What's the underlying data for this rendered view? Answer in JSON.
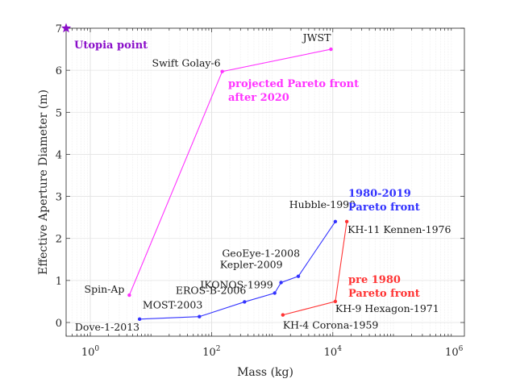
{
  "chart_data": {
    "type": "line",
    "title": "",
    "xlabel": "Mass (kg)",
    "ylabel": "Effective Aperture Diameter (m)",
    "xscale": "log",
    "xlim": [
      0.4,
      1000000
    ],
    "ylim": [
      -0.4,
      7
    ],
    "grid": true,
    "x_ticks": [
      {
        "value": 1,
        "base": "10",
        "exp": "0"
      },
      {
        "value": 100,
        "base": "10",
        "exp": "2"
      },
      {
        "value": 10000,
        "base": "10",
        "exp": "4"
      },
      {
        "value": 1000000,
        "base": "10",
        "exp": "6"
      }
    ],
    "y_ticks": [
      0,
      1,
      2,
      3,
      4,
      5,
      6,
      7
    ],
    "series": [
      {
        "name": "projected Pareto front after 2020",
        "color": "#ff33ff",
        "annotation": [
          "projected Pareto front",
          "after 2020"
        ],
        "points": [
          {
            "label": "Spin-Ap",
            "x": 4.4,
            "y": 0.65
          },
          {
            "label": "Swift Golay-6",
            "x": 150,
            "y": 5.97
          },
          {
            "label": "JWST",
            "x": 9300,
            "y": 6.5
          }
        ]
      },
      {
        "name": "1980-2019 Pareto front",
        "color": "#3333ff",
        "annotation": [
          "1980-2019",
          "Pareto front"
        ],
        "points": [
          {
            "label": "Dove-1-2013",
            "x": 6.5,
            "y": 0.08
          },
          {
            "label": "MOST-2003",
            "x": 63,
            "y": 0.14
          },
          {
            "label": "EROS-B-2006",
            "x": 350,
            "y": 0.49
          },
          {
            "label": "IKONOS-1999",
            "x": 1100,
            "y": 0.7
          },
          {
            "label": "Kepler-2009",
            "x": 1400,
            "y": 0.95
          },
          {
            "label": "GeoEye-1-2008",
            "x": 2700,
            "y": 1.1
          },
          {
            "label": "Hubble-1990",
            "x": 11000,
            "y": 2.4
          }
        ]
      },
      {
        "name": "pre 1980 Pareto front",
        "color": "#ff3333",
        "annotation": [
          "pre 1980",
          "Pareto front"
        ],
        "points": [
          {
            "label": "KH-4 Corona-1959",
            "x": 1500,
            "y": 0.18
          },
          {
            "label": "KH-9 Hexagon-1971",
            "x": 11000,
            "y": 0.5
          },
          {
            "label": "KH-11 Kennen-1976",
            "x": 17000,
            "y": 2.4
          }
        ]
      }
    ],
    "utopia": {
      "label": "Utopia point",
      "x": 0.4,
      "y": 7,
      "color": "#8a0ec9"
    }
  }
}
